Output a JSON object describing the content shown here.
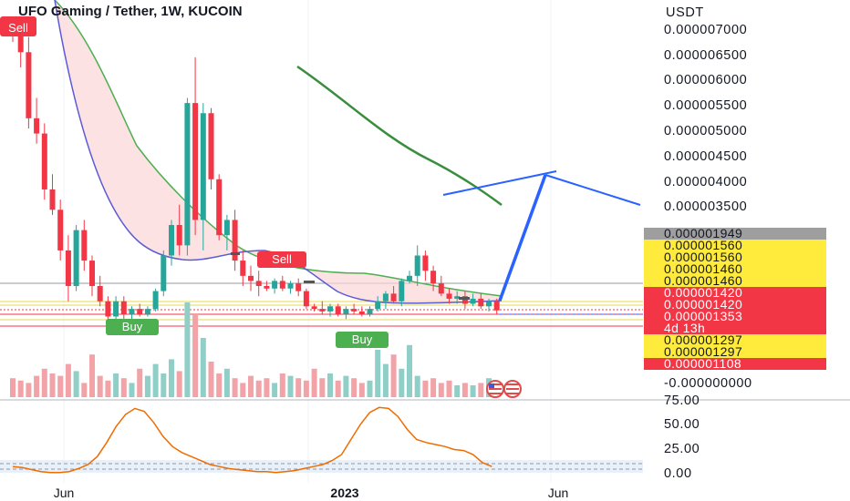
{
  "chart_data": {
    "type": "candlestick",
    "title": "UFO Gaming / Tether, 1W, KUCOIN",
    "currency_label": "USDT",
    "price_axis_ticks": [
      "0.000007000",
      "0.000006500",
      "0.000006000",
      "0.000005500",
      "0.000005000",
      "0.000004500",
      "0.000004000",
      "0.000003500",
      "-0.000000000"
    ],
    "price_tags": [
      {
        "text": "0.000001949",
        "bg": "#9e9e9e",
        "fg": "#131722"
      },
      {
        "text": "0.000001560",
        "bg": "#ffeb3b",
        "fg": "#131722"
      },
      {
        "text": "0.000001560",
        "bg": "#ffeb3b",
        "fg": "#131722"
      },
      {
        "text": "0.000001460",
        "bg": "#ffeb3b",
        "fg": "#131722"
      },
      {
        "text": "0.000001460",
        "bg": "#ffeb3b",
        "fg": "#131722"
      },
      {
        "text": "0.000001420",
        "bg": "#f23645",
        "fg": "#ffffff"
      },
      {
        "text": "0.000001420",
        "bg": "#f23645",
        "fg": "#ffffff"
      },
      {
        "text": "0.000001353",
        "bg": "#f23645",
        "fg": "#ffffff"
      },
      {
        "text": "4d 13h",
        "bg": "#f23645",
        "fg": "#ffffff"
      },
      {
        "text": "0.000001297",
        "bg": "#ffeb3b",
        "fg": "#131722"
      },
      {
        "text": "0.000001297",
        "bg": "#ffeb3b",
        "fg": "#131722"
      },
      {
        "text": "0.000001108",
        "bg": "#f23645",
        "fg": "#ffffff"
      }
    ],
    "oscillator_ticks": [
      "75.00",
      "50.00",
      "25.00",
      "0.00"
    ],
    "oscillator_values": [
      8,
      7,
      5,
      3,
      2,
      2,
      3,
      6,
      10,
      18,
      32,
      48,
      60,
      66,
      63,
      52,
      38,
      28,
      22,
      18,
      14,
      10,
      8,
      6,
      5,
      4,
      3,
      3,
      2,
      3,
      4,
      6,
      8,
      10,
      14,
      20,
      35,
      50,
      62,
      67,
      66,
      58,
      45,
      35,
      32,
      30,
      28,
      25,
      24,
      20,
      12,
      8
    ],
    "x_labels": [
      "Jun",
      "2023",
      "Jun"
    ],
    "signals": [
      {
        "text": "Sell",
        "type": "sell"
      },
      {
        "text": "Buy",
        "type": "buy"
      },
      {
        "text": "Sell",
        "type": "sell"
      },
      {
        "text": "Buy",
        "type": "buy"
      }
    ],
    "candles": [
      [
        7.0,
        7.2,
        6.7,
        6.95
      ],
      [
        6.95,
        7.1,
        6.2,
        6.5
      ],
      [
        6.5,
        6.8,
        5.0,
        5.2
      ],
      [
        5.2,
        5.6,
        4.7,
        4.9
      ],
      [
        4.9,
        5.1,
        3.6,
        3.8
      ],
      [
        3.8,
        4.1,
        3.3,
        3.4
      ],
      [
        3.4,
        3.6,
        2.4,
        2.6
      ],
      [
        2.6,
        2.9,
        1.6,
        1.9
      ],
      [
        1.9,
        3.1,
        1.8,
        3.0
      ],
      [
        3.0,
        3.2,
        2.2,
        2.4
      ],
      [
        2.4,
        2.5,
        1.7,
        1.9
      ],
      [
        1.9,
        2.1,
        1.5,
        1.6
      ],
      [
        1.6,
        1.7,
        1.2,
        1.3
      ],
      [
        1.3,
        1.7,
        1.1,
        1.6
      ],
      [
        1.6,
        1.7,
        1.25,
        1.35
      ],
      [
        1.35,
        1.5,
        1.2,
        1.45
      ],
      [
        1.45,
        1.55,
        1.3,
        1.35
      ],
      [
        1.35,
        1.5,
        1.3,
        1.45
      ],
      [
        1.45,
        1.85,
        1.4,
        1.8
      ],
      [
        1.8,
        2.6,
        1.7,
        2.5
      ],
      [
        2.5,
        3.2,
        2.3,
        3.1
      ],
      [
        3.1,
        3.5,
        2.5,
        2.7
      ],
      [
        2.7,
        5.6,
        2.5,
        5.5
      ],
      [
        5.5,
        6.4,
        2.9,
        3.2
      ],
      [
        3.2,
        5.5,
        2.6,
        5.3
      ],
      [
        5.3,
        5.4,
        3.8,
        4.0
      ],
      [
        4.0,
        4.1,
        2.8,
        2.9
      ],
      [
        2.9,
        3.3,
        2.6,
        3.2
      ],
      [
        3.2,
        3.4,
        2.2,
        2.4
      ],
      [
        2.4,
        2.6,
        1.9,
        2.1
      ],
      [
        2.1,
        2.3,
        1.8,
        2.0
      ],
      [
        2.0,
        2.2,
        1.7,
        1.9
      ],
      [
        1.9,
        2.0,
        1.8,
        1.85
      ],
      [
        1.85,
        2.05,
        1.75,
        2.0
      ],
      [
        2.0,
        2.1,
        1.8,
        1.85
      ],
      [
        1.85,
        2.0,
        1.75,
        1.95
      ],
      [
        1.95,
        2.05,
        1.7,
        1.8
      ],
      [
        1.8,
        1.85,
        1.45,
        1.5
      ],
      [
        1.5,
        1.55,
        1.4,
        1.45
      ],
      [
        1.45,
        1.6,
        1.35,
        1.4
      ],
      [
        1.4,
        1.55,
        1.3,
        1.5
      ],
      [
        1.5,
        1.55,
        1.3,
        1.35
      ],
      [
        1.35,
        1.5,
        1.25,
        1.45
      ],
      [
        1.45,
        1.55,
        1.35,
        1.4
      ],
      [
        1.4,
        1.5,
        1.3,
        1.35
      ],
      [
        1.35,
        1.5,
        1.3,
        1.45
      ],
      [
        1.45,
        1.7,
        1.4,
        1.6
      ],
      [
        1.6,
        1.8,
        1.45,
        1.75
      ],
      [
        1.75,
        1.9,
        1.55,
        1.6
      ],
      [
        1.6,
        2.05,
        1.5,
        2.0
      ],
      [
        2.0,
        2.2,
        1.95,
        2.1
      ],
      [
        2.1,
        2.7,
        1.9,
        2.5
      ],
      [
        2.5,
        2.6,
        2.0,
        2.2
      ],
      [
        2.2,
        2.3,
        1.8,
        1.95
      ],
      [
        1.95,
        2.1,
        1.7,
        1.75
      ],
      [
        1.75,
        1.85,
        1.55,
        1.65
      ],
      [
        1.65,
        1.8,
        1.55,
        1.7
      ],
      [
        1.7,
        1.8,
        1.45,
        1.55
      ],
      [
        1.55,
        1.75,
        1.5,
        1.65
      ],
      [
        1.65,
        1.75,
        1.45,
        1.5
      ],
      [
        1.5,
        1.65,
        1.4,
        1.6
      ],
      [
        1.6,
        1.65,
        1.35,
        1.42
      ]
    ],
    "volumes": [
      8,
      7,
      6,
      9,
      12,
      10,
      9,
      14,
      11,
      6,
      18,
      9,
      7,
      10,
      8,
      6,
      12,
      9,
      14,
      10,
      16,
      11,
      40,
      35,
      25,
      15,
      10,
      12,
      8,
      6,
      9,
      7,
      8,
      6,
      10,
      9,
      8,
      7,
      12,
      8,
      10,
      7,
      9,
      8,
      6,
      7,
      20,
      14,
      18,
      12,
      22,
      9,
      7,
      8,
      6,
      7,
      5,
      6,
      5,
      6,
      8,
      5
    ]
  }
}
